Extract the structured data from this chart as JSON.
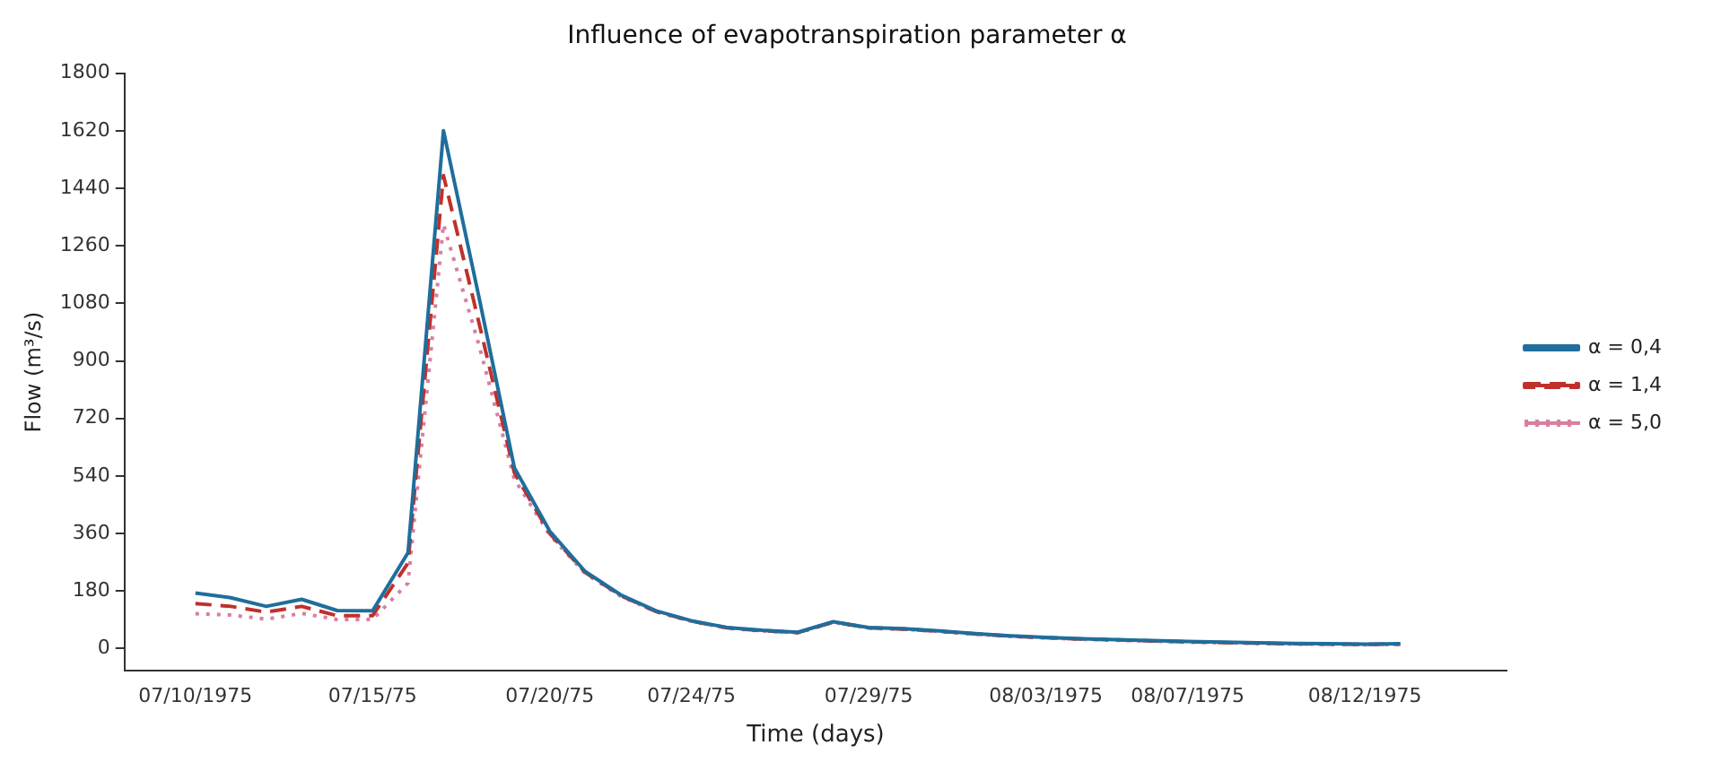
{
  "chart_data": {
    "type": "line",
    "title": "Influence of evapotranspiration parameter α",
    "xlabel": "Time (days)",
    "ylabel": "Flow (m³/s)",
    "x": [
      "1975-07-10",
      "1975-07-11",
      "1975-07-12",
      "1975-07-13",
      "1975-07-14",
      "1975-07-15",
      "1975-07-16",
      "1975-07-17",
      "1975-07-18",
      "1975-07-19",
      "1975-07-20",
      "1975-07-21",
      "1975-07-22",
      "1975-07-23",
      "1975-07-24",
      "1975-07-25",
      "1975-07-26",
      "1975-07-27",
      "1975-07-28",
      "1975-07-29",
      "1975-07-30",
      "1975-07-31",
      "1975-08-01",
      "1975-08-02",
      "1975-08-03",
      "1975-08-04",
      "1975-08-05",
      "1975-08-06",
      "1975-08-07",
      "1975-08-08",
      "1975-08-09",
      "1975-08-10",
      "1975-08-11",
      "1975-08-12",
      "1975-08-13"
    ],
    "series": [
      {
        "name": "α = 0,4",
        "color": "#1f6e9c",
        "line_style": "solid",
        "values": [
          174,
          159,
          132,
          154,
          119,
          118,
          300,
          1620,
          1100,
          566,
          367,
          241,
          168,
          118,
          87,
          66,
          57,
          51,
          84,
          66,
          62,
          55,
          47,
          40,
          35,
          31,
          28,
          25,
          22,
          20,
          18,
          16,
          15,
          14,
          15
        ]
      },
      {
        "name": "α = 1,4",
        "color": "#c0302b",
        "line_style": "dashed",
        "values": [
          141,
          132,
          114,
          132,
          103,
          103,
          268,
          1480,
          1020,
          550,
          360,
          238,
          166,
          116,
          86,
          65,
          56,
          50,
          83,
          65,
          61,
          54,
          46,
          39,
          34,
          30,
          27,
          24,
          21,
          19,
          17,
          15,
          14,
          13,
          14
        ]
      },
      {
        "name": "α = 5,0",
        "color": "#d77fa1",
        "line_style": "dotted",
        "values": [
          109,
          105,
          92,
          110,
          91,
          91,
          205,
          1327,
          950,
          530,
          355,
          235,
          164,
          115,
          85,
          64,
          55,
          49,
          82,
          64,
          60,
          53,
          45,
          38,
          33,
          29,
          26,
          23,
          20,
          18,
          16,
          14,
          13,
          12,
          13
        ]
      }
    ],
    "xlim": [
      "1975-07-08",
      "1975-08-16"
    ],
    "xticks": [
      {
        "value": "1975-07-10",
        "label": "07/10/1975"
      },
      {
        "value": "1975-07-15",
        "label": "07/15/75"
      },
      {
        "value": "1975-07-20",
        "label": "07/20/75"
      },
      {
        "value": "1975-07-24",
        "label": "07/24/75"
      },
      {
        "value": "1975-07-29",
        "label": "07/29/75"
      },
      {
        "value": "1975-08-03",
        "label": "08/03/1975"
      },
      {
        "value": "1975-08-07",
        "label": "08/07/1975"
      },
      {
        "value": "1975-08-12",
        "label": "08/12/1975"
      }
    ],
    "ylim": [
      -70,
      1800
    ],
    "yticks": [
      0,
      180,
      360,
      540,
      720,
      900,
      1080,
      1260,
      1440,
      1620,
      1800
    ],
    "legend": "right",
    "grid": false,
    "marker": "none"
  }
}
